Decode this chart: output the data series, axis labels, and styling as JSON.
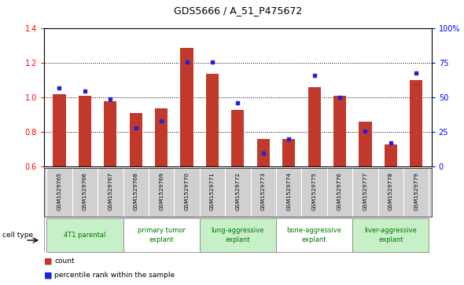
{
  "title": "GDS5666 / A_51_P475672",
  "samples": [
    "GSM1529765",
    "GSM1529766",
    "GSM1529767",
    "GSM1529768",
    "GSM1529769",
    "GSM1529770",
    "GSM1529771",
    "GSM1529772",
    "GSM1529773",
    "GSM1529774",
    "GSM1529775",
    "GSM1529776",
    "GSM1529777",
    "GSM1529778",
    "GSM1529779"
  ],
  "red_values": [
    1.02,
    1.01,
    0.98,
    0.91,
    0.94,
    1.29,
    1.14,
    0.93,
    0.76,
    0.76,
    1.06,
    1.01,
    0.86,
    0.73,
    1.1
  ],
  "blue_values": [
    57,
    55,
    49,
    28,
    33,
    76,
    76,
    46,
    10,
    20,
    66,
    50,
    26,
    17,
    68
  ],
  "ylim_left": [
    0.6,
    1.4
  ],
  "ylim_right": [
    0,
    100
  ],
  "yticks_left": [
    0.6,
    0.8,
    1.0,
    1.2,
    1.4
  ],
  "yticks_right": [
    0,
    25,
    50,
    75,
    100
  ],
  "ytick_labels_right": [
    "0",
    "25",
    "50",
    "75",
    "100%"
  ],
  "cell_groups": [
    {
      "label": "4T1 parental",
      "start": 0,
      "end": 2
    },
    {
      "label": "primary tumor\nexplant",
      "start": 3,
      "end": 5
    },
    {
      "label": "lung-aggressive\nexplant",
      "start": 6,
      "end": 8
    },
    {
      "label": "bone-aggressive\nexplant",
      "start": 9,
      "end": 11
    },
    {
      "label": "liver-aggressive\nexplant",
      "start": 12,
      "end": 14
    }
  ],
  "cell_group_colors": [
    "#c8f0c8",
    "#ffffff",
    "#c8f0c8",
    "#ffffff",
    "#c8f0c8"
  ],
  "bar_color": "#c0392b",
  "dot_color": "#2020dd",
  "bar_width": 0.5,
  "cell_type_label": "cell type",
  "legend_count": "count",
  "legend_percentile": "percentile rank within the sample",
  "sample_bg_color": "#d0d0d0",
  "cell_text_color": "#007700"
}
